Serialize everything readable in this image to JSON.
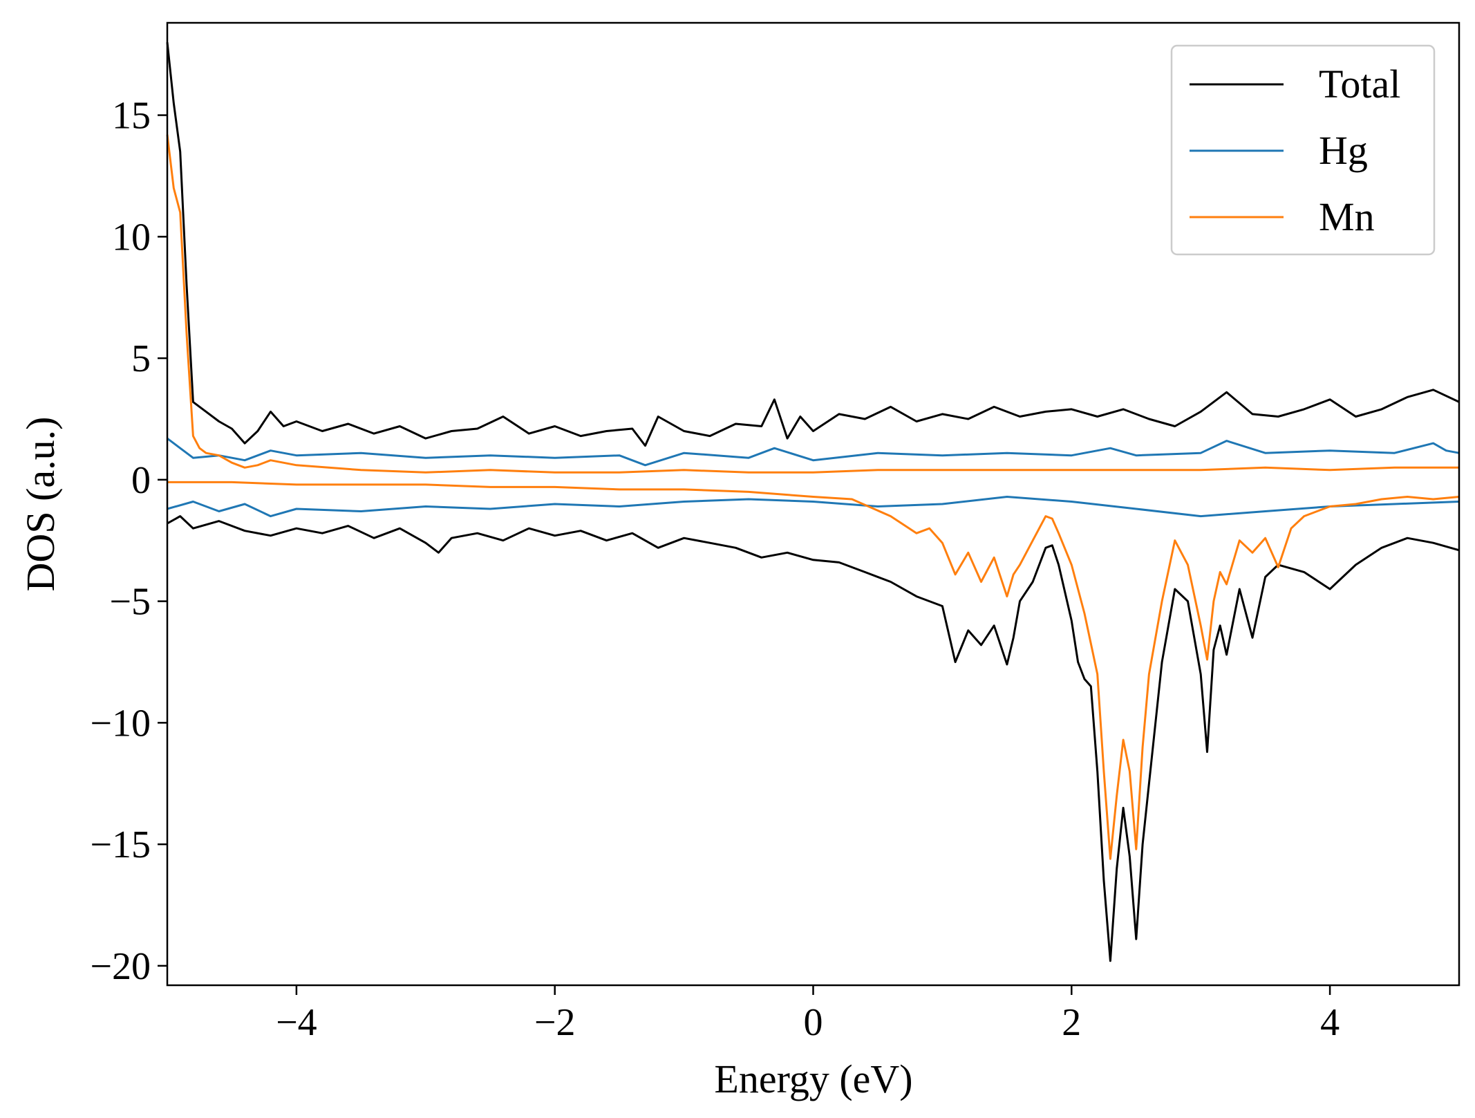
{
  "chart_data": {
    "type": "line",
    "title": "",
    "xlabel": "Energy (eV)",
    "ylabel": "DOS (a.u.)",
    "xlim": [
      -5,
      5
    ],
    "ylim": [
      -20.8,
      18.8
    ],
    "x_ticks": [
      -4,
      -2,
      0,
      2,
      4
    ],
    "x_tick_labels": [
      "−4",
      "−2",
      "0",
      "2",
      "4"
    ],
    "y_ticks": [
      15,
      10,
      5,
      0,
      -5,
      -10,
      -15,
      -20
    ],
    "y_tick_labels": [
      "15",
      "10",
      "5",
      "0",
      "−5",
      "−10",
      "−15",
      "−20"
    ],
    "grid": false,
    "legend_position": "top-right",
    "legend": [
      {
        "name": "Total",
        "color": "#000000"
      },
      {
        "name": "Hg",
        "color": "#1f77b4"
      },
      {
        "name": "Mn",
        "color": "#ff7f0e"
      }
    ],
    "series": [
      {
        "name": "Total",
        "channel": "up",
        "color": "#000000",
        "x": [
          -5.0,
          -4.95,
          -4.9,
          -4.85,
          -4.8,
          -4.7,
          -4.6,
          -4.5,
          -4.4,
          -4.3,
          -4.2,
          -4.1,
          -4.0,
          -3.8,
          -3.6,
          -3.4,
          -3.2,
          -3.0,
          -2.8,
          -2.6,
          -2.4,
          -2.2,
          -2.0,
          -1.8,
          -1.6,
          -1.4,
          -1.3,
          -1.2,
          -1.0,
          -0.8,
          -0.6,
          -0.4,
          -0.3,
          -0.2,
          -0.1,
          0.0,
          0.2,
          0.4,
          0.6,
          0.8,
          1.0,
          1.2,
          1.4,
          1.6,
          1.8,
          2.0,
          2.2,
          2.4,
          2.6,
          2.8,
          3.0,
          3.2,
          3.4,
          3.6,
          3.8,
          4.0,
          4.2,
          4.4,
          4.6,
          4.8,
          5.0
        ],
        "y": [
          18.0,
          15.5,
          13.5,
          8.0,
          3.2,
          2.8,
          2.4,
          2.1,
          1.5,
          2.0,
          2.8,
          2.2,
          2.4,
          2.0,
          2.3,
          1.9,
          2.2,
          1.7,
          2.0,
          2.1,
          2.6,
          1.9,
          2.2,
          1.8,
          2.0,
          2.1,
          1.4,
          2.6,
          2.0,
          1.8,
          2.3,
          2.2,
          3.3,
          1.7,
          2.6,
          2.0,
          2.7,
          2.5,
          3.0,
          2.4,
          2.7,
          2.5,
          3.0,
          2.6,
          2.8,
          2.9,
          2.6,
          2.9,
          2.5,
          2.2,
          2.8,
          3.6,
          2.7,
          2.6,
          2.9,
          3.3,
          2.6,
          2.9,
          3.4,
          3.7,
          3.2
        ]
      },
      {
        "name": "Total",
        "channel": "down",
        "color": "#000000",
        "x": [
          -5.0,
          -4.9,
          -4.8,
          -4.6,
          -4.4,
          -4.2,
          -4.0,
          -3.8,
          -3.6,
          -3.4,
          -3.2,
          -3.0,
          -2.9,
          -2.8,
          -2.6,
          -2.4,
          -2.2,
          -2.0,
          -1.8,
          -1.6,
          -1.4,
          -1.2,
          -1.0,
          -0.8,
          -0.6,
          -0.4,
          -0.2,
          0.0,
          0.2,
          0.4,
          0.6,
          0.8,
          1.0,
          1.1,
          1.2,
          1.3,
          1.4,
          1.5,
          1.55,
          1.6,
          1.7,
          1.8,
          1.85,
          1.9,
          2.0,
          2.05,
          2.1,
          2.15,
          2.2,
          2.25,
          2.3,
          2.35,
          2.4,
          2.45,
          2.5,
          2.55,
          2.6,
          2.7,
          2.8,
          2.9,
          3.0,
          3.05,
          3.1,
          3.15,
          3.2,
          3.3,
          3.4,
          3.5,
          3.6,
          3.8,
          4.0,
          4.2,
          4.4,
          4.6,
          4.8,
          5.0
        ],
        "y": [
          -1.8,
          -1.5,
          -2.0,
          -1.7,
          -2.1,
          -2.3,
          -2.0,
          -2.2,
          -1.9,
          -2.4,
          -2.0,
          -2.6,
          -3.0,
          -2.4,
          -2.2,
          -2.5,
          -2.0,
          -2.3,
          -2.1,
          -2.5,
          -2.2,
          -2.8,
          -2.4,
          -2.6,
          -2.8,
          -3.2,
          -3.0,
          -3.3,
          -3.4,
          -3.8,
          -4.2,
          -4.8,
          -5.2,
          -7.5,
          -6.2,
          -6.8,
          -6.0,
          -7.6,
          -6.5,
          -5.0,
          -4.2,
          -2.8,
          -2.7,
          -3.5,
          -5.8,
          -7.5,
          -8.2,
          -8.5,
          -12.0,
          -16.5,
          -19.8,
          -16.0,
          -13.5,
          -15.5,
          -18.9,
          -15.0,
          -12.5,
          -7.5,
          -4.5,
          -5.0,
          -8.0,
          -11.2,
          -7.0,
          -6.0,
          -7.2,
          -4.5,
          -6.5,
          -4.0,
          -3.5,
          -3.8,
          -4.5,
          -3.5,
          -2.8,
          -2.4,
          -2.6,
          -2.9
        ]
      },
      {
        "name": "Hg",
        "channel": "up",
        "color": "#1f77b4",
        "x": [
          -5.0,
          -4.9,
          -4.8,
          -4.6,
          -4.4,
          -4.2,
          -4.0,
          -3.5,
          -3.0,
          -2.5,
          -2.0,
          -1.5,
          -1.3,
          -1.0,
          -0.5,
          -0.3,
          0.0,
          0.5,
          1.0,
          1.5,
          2.0,
          2.3,
          2.5,
          3.0,
          3.2,
          3.5,
          4.0,
          4.5,
          4.8,
          4.9,
          5.0
        ],
        "y": [
          1.7,
          1.3,
          0.9,
          1.0,
          0.8,
          1.2,
          1.0,
          1.1,
          0.9,
          1.0,
          0.9,
          1.0,
          0.6,
          1.1,
          0.9,
          1.3,
          0.8,
          1.1,
          1.0,
          1.1,
          1.0,
          1.3,
          1.0,
          1.1,
          1.6,
          1.1,
          1.2,
          1.1,
          1.5,
          1.2,
          1.1
        ]
      },
      {
        "name": "Hg",
        "channel": "down",
        "color": "#1f77b4",
        "x": [
          -5.0,
          -4.8,
          -4.6,
          -4.4,
          -4.2,
          -4.0,
          -3.5,
          -3.0,
          -2.5,
          -2.0,
          -1.5,
          -1.0,
          -0.5,
          0.0,
          0.5,
          1.0,
          1.5,
          2.0,
          2.5,
          3.0,
          3.5,
          4.0,
          4.5,
          5.0
        ],
        "y": [
          -1.2,
          -0.9,
          -1.3,
          -1.0,
          -1.5,
          -1.2,
          -1.3,
          -1.1,
          -1.2,
          -1.0,
          -1.1,
          -0.9,
          -0.8,
          -0.9,
          -1.1,
          -1.0,
          -0.7,
          -0.9,
          -1.2,
          -1.5,
          -1.3,
          -1.1,
          -1.0,
          -0.9
        ]
      },
      {
        "name": "Mn",
        "channel": "up",
        "color": "#ff7f0e",
        "x": [
          -5.0,
          -4.95,
          -4.9,
          -4.85,
          -4.8,
          -4.75,
          -4.7,
          -4.6,
          -4.5,
          -4.4,
          -4.3,
          -4.2,
          -4.0,
          -3.5,
          -3.0,
          -2.5,
          -2.0,
          -1.5,
          -1.0,
          -0.5,
          0.0,
          0.5,
          1.0,
          1.5,
          2.0,
          2.5,
          3.0,
          3.5,
          4.0,
          4.5,
          5.0
        ],
        "y": [
          14.2,
          12.0,
          11.0,
          6.0,
          1.8,
          1.3,
          1.1,
          1.0,
          0.7,
          0.5,
          0.6,
          0.8,
          0.6,
          0.4,
          0.3,
          0.4,
          0.3,
          0.3,
          0.4,
          0.3,
          0.3,
          0.4,
          0.4,
          0.4,
          0.4,
          0.4,
          0.4,
          0.5,
          0.4,
          0.5,
          0.5
        ]
      },
      {
        "name": "Mn",
        "channel": "down",
        "color": "#ff7f0e",
        "x": [
          -5.0,
          -4.5,
          -4.0,
          -3.5,
          -3.0,
          -2.5,
          -2.0,
          -1.5,
          -1.0,
          -0.5,
          0.0,
          0.3,
          0.6,
          0.8,
          0.9,
          1.0,
          1.1,
          1.2,
          1.3,
          1.4,
          1.5,
          1.55,
          1.6,
          1.7,
          1.8,
          1.85,
          1.9,
          2.0,
          2.1,
          2.2,
          2.25,
          2.3,
          2.35,
          2.4,
          2.45,
          2.5,
          2.55,
          2.6,
          2.7,
          2.8,
          2.9,
          3.0,
          3.05,
          3.1,
          3.15,
          3.2,
          3.3,
          3.4,
          3.5,
          3.6,
          3.7,
          3.8,
          4.0,
          4.2,
          4.4,
          4.6,
          4.8,
          5.0
        ],
        "y": [
          -0.1,
          -0.1,
          -0.2,
          -0.2,
          -0.2,
          -0.3,
          -0.3,
          -0.4,
          -0.4,
          -0.5,
          -0.7,
          -0.8,
          -1.5,
          -2.2,
          -2.0,
          -2.6,
          -3.9,
          -3.0,
          -4.2,
          -3.2,
          -4.8,
          -3.9,
          -3.5,
          -2.5,
          -1.5,
          -1.6,
          -2.2,
          -3.5,
          -5.5,
          -8.0,
          -12.0,
          -15.6,
          -13.0,
          -10.7,
          -12.0,
          -15.2,
          -11.0,
          -8.0,
          -5.0,
          -2.5,
          -3.5,
          -6.0,
          -7.4,
          -5.0,
          -3.8,
          -4.3,
          -2.5,
          -3.0,
          -2.4,
          -3.6,
          -2.0,
          -1.5,
          -1.1,
          -1.0,
          -0.8,
          -0.7,
          -0.8,
          -0.7
        ]
      }
    ]
  }
}
